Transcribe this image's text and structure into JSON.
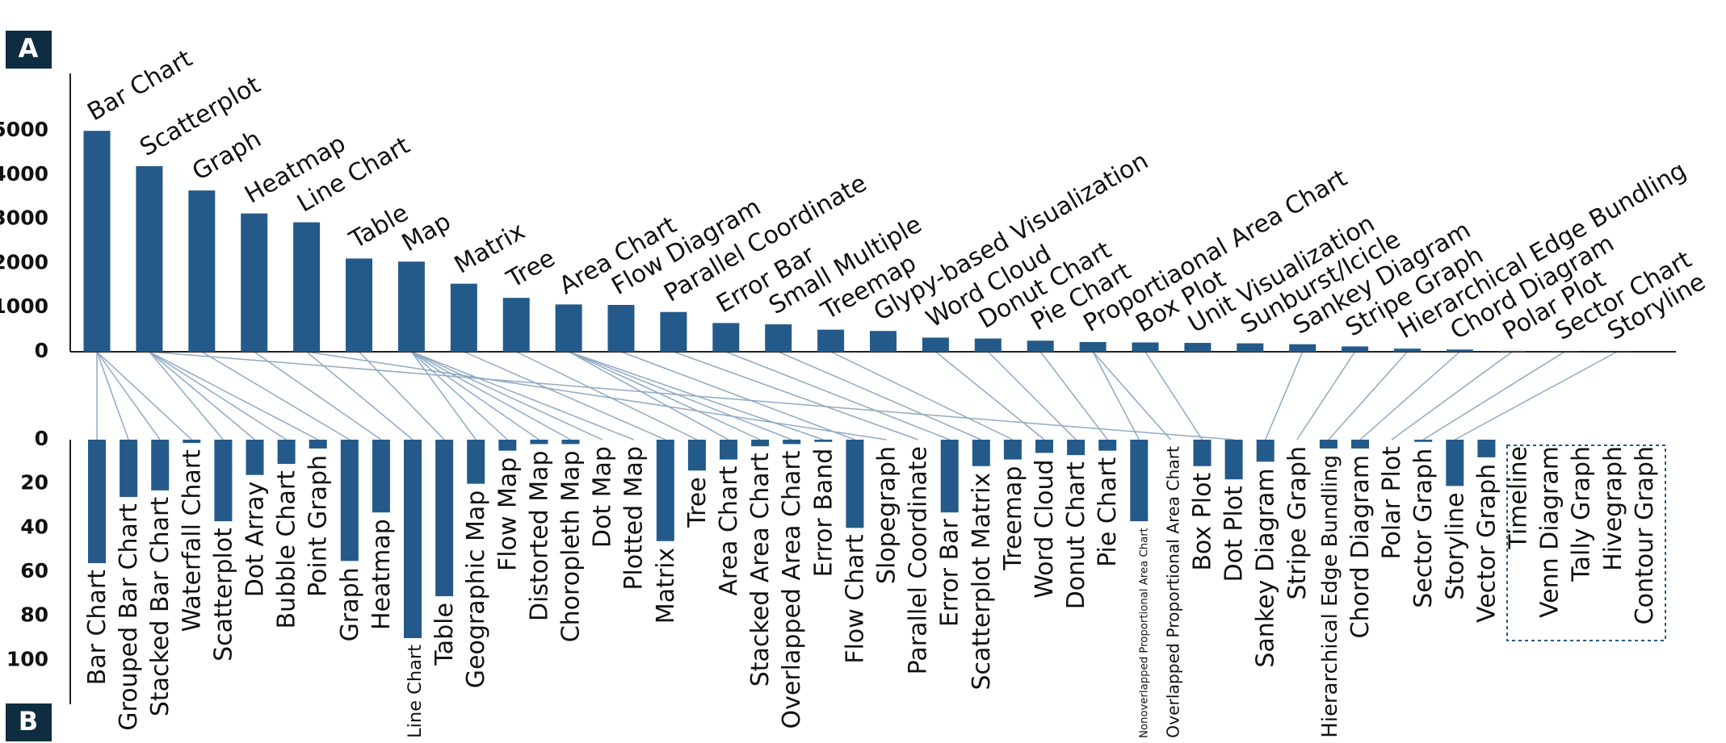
{
  "panels": [
    "A",
    "B"
  ],
  "chart_data": [
    {
      "type": "bar",
      "color": "#245a8a",
      "categories": [
        "Bar Chart",
        "Scatterplot",
        "Graph",
        "Heatmap",
        "Line Chart",
        "Table",
        "Map",
        "Matrix",
        "Tree",
        "Area Chart",
        "Flow Diagram",
        "Parallel Coordinate",
        "Error Bar",
        "Small Multiple",
        "Treemap",
        "Glypy-based Visualization",
        "Word Cloud",
        "Donut Chart",
        "Pie Chart",
        "Proportiaonal Area Chart",
        "Box Plot",
        "Unit Visualization",
        "Sunburst/Icicle",
        "Sankey Diagram",
        "Stripe Graph",
        "Hierarchical Edge Bundling",
        "Chord Diagram",
        "Polar Plot",
        "Sector Chart",
        "Storyline"
      ],
      "values": [
        5000,
        4200,
        3650,
        3130,
        2930,
        2110,
        2040,
        1540,
        1220,
        1070,
        1060,
        900,
        650,
        620,
        500,
        470,
        320,
        300,
        250,
        220,
        210,
        200,
        190,
        170,
        120,
        70,
        50,
        20,
        10,
        5
      ],
      "ylim": [
        0,
        6300
      ],
      "yticks": [
        0,
        1000,
        2000,
        3000,
        4000,
        5000
      ]
    },
    {
      "type": "bar",
      "color": "#245a8a",
      "direction": "down",
      "categories": [
        "Bar Chart",
        "Grouped Bar Chart",
        "Stacked Bar Chart",
        "Waterfall Chart",
        "Scatterplot",
        "Dot Array",
        "Bubble Chart",
        "Point Graph",
        "Graph",
        "Heatmap",
        "Line Chart",
        "Table",
        "Geographic Map",
        "Flow Map",
        "Distorted Map",
        "Choropleth Map",
        "Dot Map",
        "Plotted Map",
        "Matrix",
        "Tree",
        "Area Chart",
        "Stacked Area Chart",
        "Overlapped Area Chart",
        "Error Band",
        "Flow Chart",
        "Slopegraph",
        "Parallel Coordinate",
        "Error Bar",
        "Scatterplot Matrix",
        "Treemap",
        "Word Cloud",
        "Donut Chart",
        "Pie Chart",
        "Nonoverlapped Proportional Area Chart",
        "Overlapped Proportional Area Chart",
        "Box Plot",
        "Dot Plot",
        "Sankey Diagram",
        "Stripe Graph",
        "Hierarchical Edge Bundling",
        "Chord Diagram",
        "Polar Plot",
        "Sector Graph",
        "Storyline",
        "Vector Graph",
        "Timeline",
        "Venn Diagram",
        "Tally Graph",
        "Hivegraph",
        "Contour Graph"
      ],
      "values": [
        56,
        26,
        23,
        1.5,
        37,
        16,
        11,
        4,
        55,
        33,
        90,
        71,
        20,
        5,
        2,
        2,
        0,
        0,
        46,
        14,
        9,
        3,
        2,
        1,
        40,
        0,
        0,
        33,
        12,
        9,
        6,
        7,
        5,
        37,
        0,
        12,
        18,
        10,
        0,
        4,
        4,
        0,
        1,
        21,
        8,
        0,
        0,
        0,
        0,
        0
      ],
      "ylim": [
        0,
        120
      ],
      "yticks": [
        0,
        20,
        40,
        60,
        80,
        100
      ]
    }
  ],
  "links": [
    [
      0,
      0
    ],
    [
      0,
      1
    ],
    [
      0,
      2
    ],
    [
      0,
      3
    ],
    [
      1,
      4
    ],
    [
      1,
      5
    ],
    [
      1,
      6
    ],
    [
      1,
      7
    ],
    [
      1,
      36
    ],
    [
      2,
      8
    ],
    [
      3,
      9
    ],
    [
      4,
      10
    ],
    [
      4,
      25
    ],
    [
      5,
      11
    ],
    [
      6,
      12
    ],
    [
      6,
      13
    ],
    [
      6,
      14
    ],
    [
      6,
      15
    ],
    [
      6,
      16
    ],
    [
      6,
      17
    ],
    [
      7,
      18
    ],
    [
      8,
      19
    ],
    [
      9,
      20
    ],
    [
      9,
      21
    ],
    [
      9,
      22
    ],
    [
      9,
      23
    ],
    [
      10,
      24
    ],
    [
      11,
      26
    ],
    [
      12,
      27
    ],
    [
      13,
      28
    ],
    [
      14,
      29
    ],
    [
      16,
      30
    ],
    [
      17,
      31
    ],
    [
      18,
      32
    ],
    [
      19,
      33
    ],
    [
      19,
      34
    ],
    [
      20,
      35
    ],
    [
      23,
      37
    ],
    [
      24,
      38
    ],
    [
      25,
      39
    ],
    [
      26,
      40
    ],
    [
      27,
      41
    ],
    [
      28,
      42
    ],
    [
      29,
      43
    ]
  ]
}
